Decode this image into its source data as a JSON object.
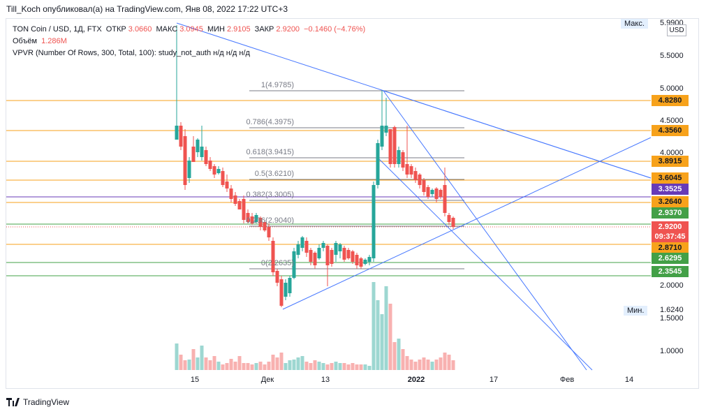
{
  "header": {
    "credit": "Till_Koch опубликовал(а) на TradingView.com, Янв 08, 2022 17:22 UTC+3"
  },
  "legend": {
    "symbol": "TON Coin / USD, 1Д, FTX",
    "open_label": "ОТКР",
    "open": "3.0660",
    "high_label": "МАКС",
    "high": "3.0945",
    "low_label": "МИН",
    "low": "2.9105",
    "close_label": "ЗАКР",
    "close": "2.9200",
    "change": "−0.1460 (−4.76%)",
    "volume_label": "Объём",
    "volume": "1.286M",
    "vpvr": "VPVR (Number Of Rows, 300, Total, 100): study_not_auth  н/д  н/д  н/д"
  },
  "axis": {
    "currency": "USD",
    "max_label": "Макс.",
    "max_value": "5.9900",
    "min_label": "Мин.",
    "min_value": "1.6240",
    "ticks": [
      "5.5000",
      "5.0000",
      "4.5000",
      "4.0000",
      "2.0000",
      "1.5000",
      "1.0000"
    ],
    "x_labels": [
      "15",
      "Дек",
      "13",
      "2022",
      "17",
      "Фев",
      "14"
    ]
  },
  "price_tags": [
    {
      "value": "4.8280",
      "color": "#f7a21b"
    },
    {
      "value": "4.3560",
      "color": "#f7a21b"
    },
    {
      "value": "3.8915",
      "color": "#f7a21b"
    },
    {
      "value": "3.6045",
      "color": "#f7a21b"
    },
    {
      "value": "3.3525",
      "color": "#673ab7"
    },
    {
      "value": "3.2640",
      "color": "#f7a21b"
    },
    {
      "value": "2.9370",
      "color": "#43a047"
    },
    {
      "value": "2.9200",
      "color": "#ef5350"
    },
    {
      "value": "09:37:45",
      "color": "#ef5350"
    },
    {
      "value": "2.8710",
      "color": "#f7a21b"
    },
    {
      "value": "2.6295",
      "color": "#43a047"
    },
    {
      "value": "2.3545",
      "color": "#43a047"
    }
  ],
  "fib_labels": [
    "1(4.9785)",
    "0.786(4.3975)",
    "0.618(3.9415)",
    "0.5(3.6210)",
    "0.382(3.3005)",
    "0.236(2.9040)",
    "0(2.2635)"
  ],
  "brand": "TradingView",
  "colors": {
    "up": "#26a69a",
    "down": "#ef5350",
    "trend": "#2962ff",
    "level": "#f7a21b"
  }
}
